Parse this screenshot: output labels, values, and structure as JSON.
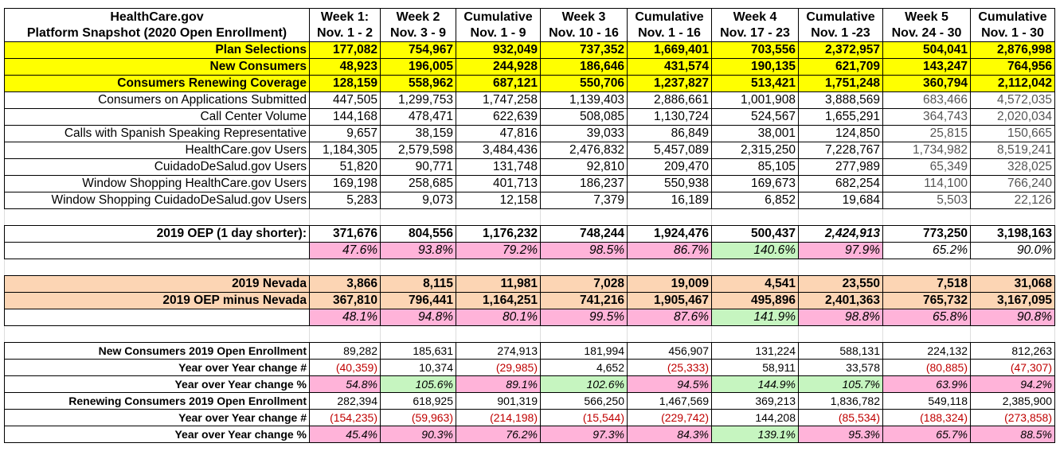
{
  "header": {
    "columns": [
      {
        "line1": "HealthCare.gov",
        "line2": "Platform Snapshot (2020 Open Enrollment)"
      },
      {
        "line1": "Week 1:",
        "line2": "Nov. 1 - 2"
      },
      {
        "line1": "Week 2",
        "line2": "Nov. 3 - 9"
      },
      {
        "line1": "Cumulative",
        "line2": "Nov. 1 - 9"
      },
      {
        "line1": "Week 3",
        "line2": "Nov. 10 - 16"
      },
      {
        "line1": "Cumulative",
        "line2": "Nov. 1 - 16"
      },
      {
        "line1": "Week 4",
        "line2": "Nov. 17 - 23"
      },
      {
        "line1": "Cumulative",
        "line2": "Nov. 1 -23"
      },
      {
        "line1": "Week 5",
        "line2": "Nov. 24 - 30"
      },
      {
        "line1": "Cumulative",
        "line2": "Nov. 1 - 30"
      }
    ]
  },
  "sections": [
    {
      "rows": [
        {
          "label": "Plan Selections",
          "cells": [
            "177,082",
            "754,967",
            "932,049",
            "737,352",
            "1,669,401",
            "703,556",
            "2,372,957",
            "504,041",
            "2,876,998"
          ]
        },
        {
          "label": "New Consumers",
          "cells": [
            "48,923",
            "196,005",
            "244,928",
            "186,646",
            "431,574",
            "190,135",
            "621,709",
            "143,247",
            "764,956"
          ]
        },
        {
          "label": "Consumers Renewing Coverage",
          "cells": [
            "128,159",
            "558,962",
            "687,121",
            "550,706",
            "1,237,827",
            "513,421",
            "1,751,248",
            "360,794",
            "2,112,042"
          ]
        },
        {
          "label": "Consumers on Applications Submitted",
          "cells": [
            "447,505",
            "1,299,753",
            "1,747,258",
            "1,139,403",
            "2,886,661",
            "1,001,908",
            "3,888,569",
            "683,466",
            "4,572,035"
          ]
        },
        {
          "label": "Call Center Volume",
          "cells": [
            "144,168",
            "478,471",
            "622,639",
            "508,085",
            "1,130,724",
            "524,567",
            "1,655,291",
            "364,743",
            "2,020,034"
          ]
        },
        {
          "label": "Calls with Spanish Speaking Representative",
          "cells": [
            "9,657",
            "38,159",
            "47,816",
            "39,033",
            "86,849",
            "38,001",
            "124,850",
            "25,815",
            "150,665"
          ]
        },
        {
          "label": "HealthCare.gov Users",
          "cells": [
            "1,184,305",
            "2,579,598",
            "3,484,436",
            "2,476,832",
            "5,457,089",
            "2,315,250",
            "7,228,767",
            "1,734,982",
            "8,519,241"
          ]
        },
        {
          "label": "CuidadoDeSalud.gov Users",
          "cells": [
            "51,820",
            "90,771",
            "131,748",
            "92,810",
            "209,470",
            "85,105",
            "277,989",
            "65,349",
            "328,025"
          ]
        },
        {
          "label": "Window Shopping HealthCare.gov Users",
          "cells": [
            "169,198",
            "258,685",
            "401,713",
            "186,237",
            "550,938",
            "169,673",
            "682,254",
            "114,100",
            "766,240"
          ]
        },
        {
          "label": "Window Shopping CuidadoDeSalud.gov Users",
          "cells": [
            "5,283",
            "9,073",
            "12,158",
            "7,379",
            "16,189",
            "6,852",
            "19,684",
            "5,503",
            "22,126"
          ]
        }
      ]
    },
    {
      "rows": [
        {
          "label": "2019 OEP (1 day shorter):",
          "cells": [
            "371,676",
            "804,556",
            "1,176,232",
            "748,244",
            "1,924,476",
            "500,437",
            "2,424,913",
            "773,250",
            "3,198,163"
          ]
        },
        {
          "cells": [
            "47.6%",
            "93.8%",
            "79.2%",
            "98.5%",
            "86.7%",
            "140.6%",
            "97.9%",
            "65.2%",
            "90.0%"
          ]
        }
      ]
    },
    {
      "rows": [
        {
          "label": "2019 Nevada",
          "cells": [
            "3,866",
            "8,115",
            "11,981",
            "7,028",
            "19,009",
            "4,541",
            "23,550",
            "7,518",
            "31,068"
          ]
        },
        {
          "label": "2019 OEP minus Nevada",
          "cells": [
            "367,810",
            "796,441",
            "1,164,251",
            "741,216",
            "1,905,467",
            "495,896",
            "2,401,363",
            "765,732",
            "3,167,095"
          ]
        },
        {
          "cells": [
            "48.1%",
            "94.8%",
            "80.1%",
            "99.5%",
            "87.6%",
            "141.9%",
            "98.8%",
            "65.8%",
            "90.8%"
          ]
        }
      ]
    },
    {
      "rows": [
        {
          "label": "New Consumers 2019 Open Enrollment",
          "cells": [
            "89,282",
            "185,631",
            "274,913",
            "181,994",
            "456,907",
            "131,224",
            "588,131",
            "224,132",
            "812,263"
          ]
        },
        {
          "label": "Year over Year change #",
          "cells": [
            "(40,359)",
            "10,374",
            "(29,985)",
            "4,652",
            "(25,333)",
            "58,911",
            "33,578",
            "(80,885)",
            "(47,307)"
          ]
        },
        {
          "label": "Year over Year change %",
          "cells": [
            "54.8%",
            "105.6%",
            "89.1%",
            "102.6%",
            "94.5%",
            "144.9%",
            "105.7%",
            "63.9%",
            "94.2%"
          ]
        },
        {
          "label": "Renewing Consumers 2019 Open Enrollment",
          "cells": [
            "282,394",
            "618,925",
            "901,319",
            "566,250",
            "1,467,569",
            "369,213",
            "1,836,782",
            "549,118",
            "2,385,900"
          ]
        },
        {
          "label": "Year over Year change #",
          "cells": [
            "(154,235)",
            "(59,963)",
            "(214,198)",
            "(15,544)",
            "(229,742)",
            "144,208",
            "(85,534)",
            "(188,324)",
            "(273,858)"
          ]
        },
        {
          "label": "Year over Year change %",
          "cells": [
            "45.4%",
            "90.3%",
            "76.2%",
            "97.3%",
            "84.3%",
            "139.1%",
            "95.3%",
            "65.7%",
            "88.5%"
          ]
        }
      ]
    }
  ]
}
